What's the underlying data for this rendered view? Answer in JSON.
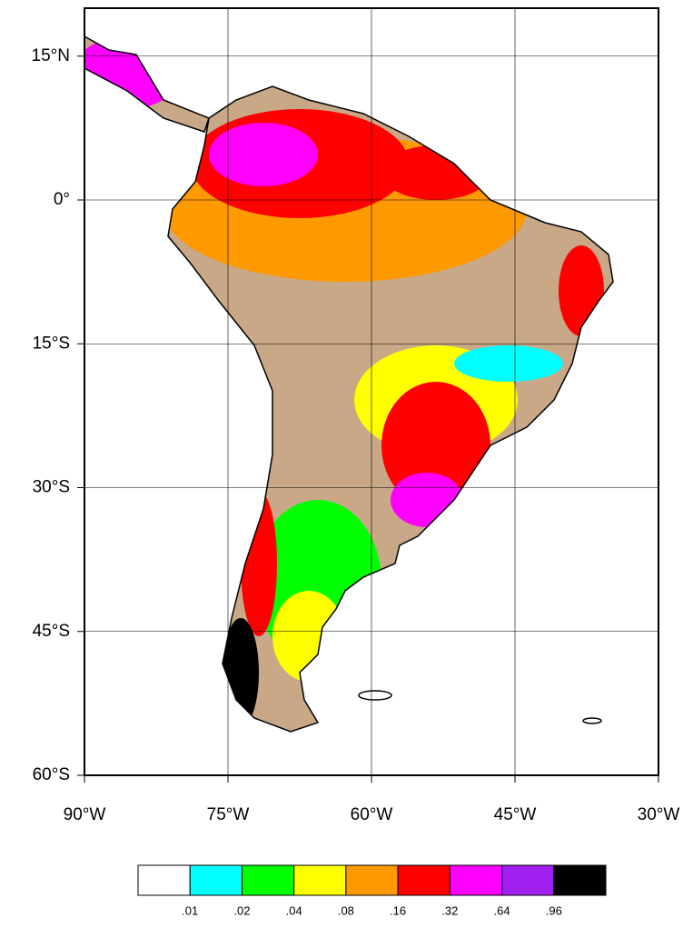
{
  "map_data": {
    "xlim": [
      -90,
      -30
    ],
    "ylim": [
      -60,
      20
    ],
    "xticks": [
      {
        "value": -90,
        "label": "90°W"
      },
      {
        "value": -75,
        "label": "75°W"
      },
      {
        "value": -60,
        "label": "60°W"
      },
      {
        "value": -45,
        "label": "45°W"
      },
      {
        "value": -30,
        "label": "30°W"
      }
    ],
    "yticks": [
      {
        "value": 15,
        "label": "15°N"
      },
      {
        "value": 0,
        "label": "0°"
      },
      {
        "value": -15,
        "label": "15°S"
      },
      {
        "value": -30,
        "label": "30°S"
      },
      {
        "value": -45,
        "label": "45°S"
      },
      {
        "value": -60,
        "label": "60°S"
      }
    ],
    "grid": true,
    "colorbar": {
      "colors": [
        "#ffffff",
        "#00ffff",
        "#00ff00",
        "#ffff00",
        "#ff9900",
        "#ff0000",
        "#ff00ff",
        "#a020f0",
        "#000000"
      ],
      "ticks": [
        {
          "value": 0.01,
          "label": ".01"
        },
        {
          "value": 0.02,
          "label": ".02"
        },
        {
          "value": 0.04,
          "label": ".04"
        },
        {
          "value": 0.08,
          "label": ".08"
        },
        {
          "value": 0.16,
          "label": ".16"
        },
        {
          "value": 0.32,
          "label": ".32"
        },
        {
          "value": 0.64,
          "label": ".64"
        },
        {
          "value": 0.96,
          "label": ".96"
        }
      ]
    }
  }
}
